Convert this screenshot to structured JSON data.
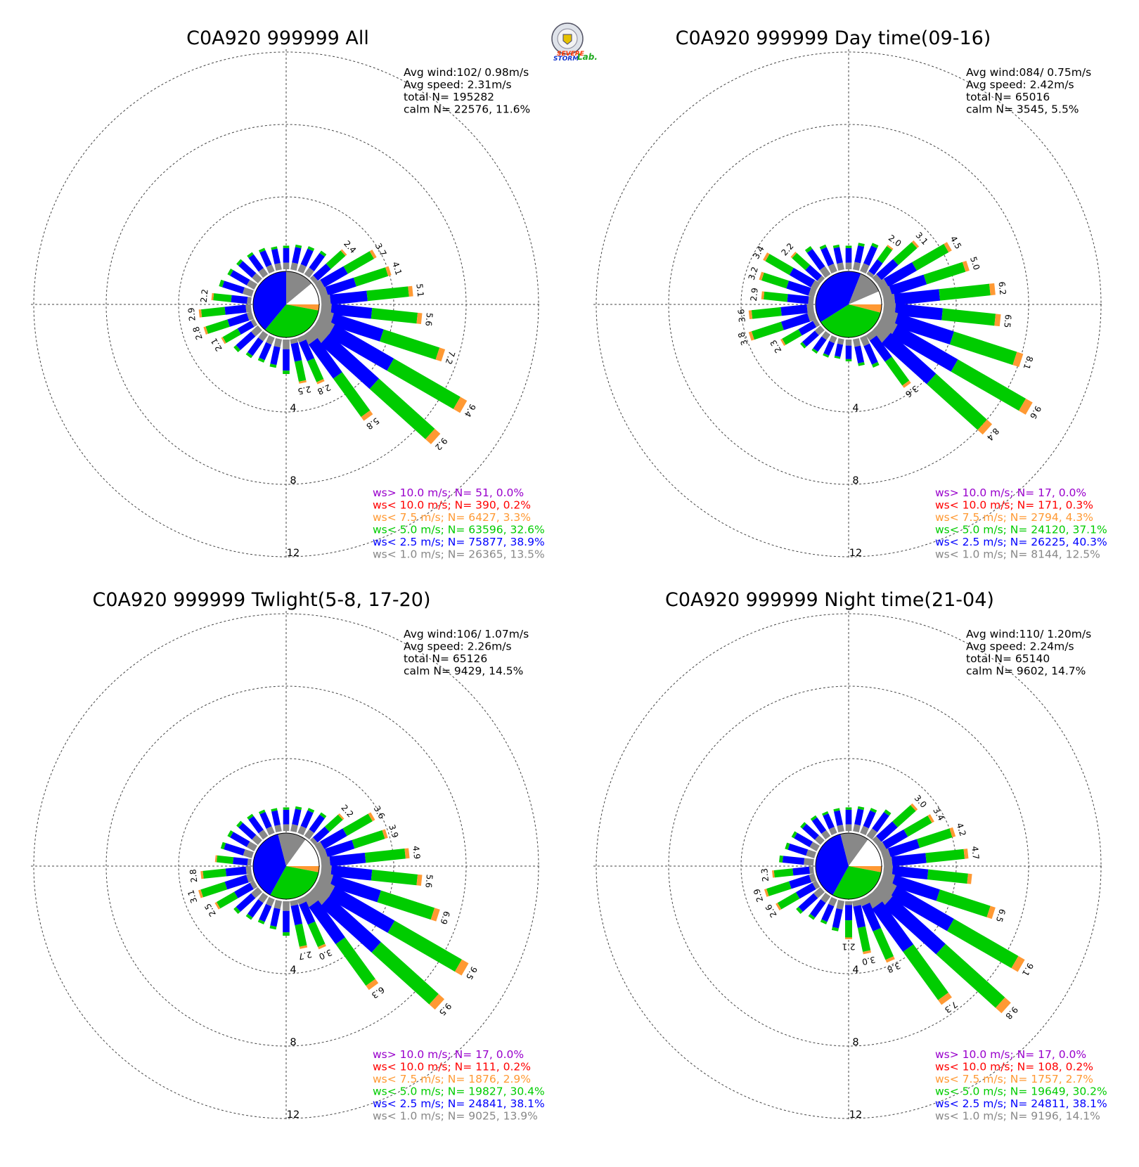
{
  "logo": {
    "text_severe": "SEVERE",
    "text_storm": "STORM",
    "text_lab": "Lab."
  },
  "chart_data": [
    {
      "type": "polar-bar",
      "title": "C0A920 999999 All",
      "radial_ticks": [
        "4",
        "8",
        "12"
      ],
      "stats": [
        "Avg wind:102/ 0.98m/s",
        "Avg speed: 2.31m/s",
        "total N=      195282",
        "calm N=  22576,  11.6%"
      ],
      "calm_pie": {
        "gray": 0.14,
        "blue": 0.39,
        "green": 0.33,
        "orange": 0.03
      },
      "sector_totals": [
        1.3,
        1.4,
        1.5,
        1.6,
        2.4,
        3.7,
        4.1,
        5.1,
        5.6,
        7.2,
        9.4,
        9.2,
        5.8,
        2.8,
        2.5,
        1.9,
        1.6,
        1.5,
        1.6,
        1.8,
        2.1,
        2.8,
        2.9,
        2.2,
        1.9,
        1.7,
        1.6,
        1.5,
        1.4,
        1.3
      ],
      "bar_labels": [
        null,
        null,
        null,
        null,
        "2.4",
        "3.7",
        "4.1",
        "5.1",
        "5.6",
        "7.2",
        "9.4",
        "9.2",
        "5.8",
        "2.8",
        "2.5",
        null,
        null,
        null,
        null,
        null,
        "2.1",
        "2.8",
        "2.9",
        "2.2",
        null,
        null,
        null,
        null,
        null,
        null
      ],
      "legend": [
        {
          "text": "ws> 10.0 m/s; N=    51,  0.0%",
          "color": "#9900cc"
        },
        {
          "text": "ws< 10.0 m/s; N=   390,  0.2%",
          "color": "#ff0000"
        },
        {
          "text": "ws<  7.5 m/s; N=  6427,  3.3%",
          "color": "#ff9933"
        },
        {
          "text": "ws<  5.0 m/s; N= 63596, 32.6%",
          "color": "#00cc00"
        },
        {
          "text": "ws<  2.5 m/s; N= 75877, 38.9%",
          "color": "#0000ff"
        },
        {
          "text": "ws<  1.0 m/s; N= 26365, 13.5%",
          "color": "#888888"
        }
      ]
    },
    {
      "type": "polar-bar",
      "title": "C0A920 999999 Day time(09-16)",
      "radial_ticks": [
        "4",
        "8",
        "12"
      ],
      "stats": [
        "Avg wind:084/ 0.75m/s",
        "Avg speed: 2.42m/s",
        "total N=       65016",
        "calm N=   3545,   5.5%"
      ],
      "calm_pie": {
        "gray": 0.125,
        "blue": 0.4,
        "green": 0.37,
        "orange": 0.04
      },
      "sector_totals": [
        1.3,
        1.5,
        1.7,
        2.0,
        3.1,
        4.5,
        5.0,
        6.2,
        6.5,
        8.1,
        9.6,
        8.4,
        3.6,
        1.8,
        1.5,
        1.2,
        1.1,
        1.2,
        1.3,
        1.5,
        2.3,
        3.8,
        3.6,
        2.9,
        3.2,
        3.4,
        2.2,
        1.9,
        1.6,
        1.4
      ],
      "bar_labels": [
        null,
        null,
        null,
        "2.0",
        "3.1",
        "4.5",
        "5.0",
        "6.2",
        "6.5",
        "8.1",
        "9.6",
        "8.4",
        "3.6",
        null,
        null,
        null,
        null,
        null,
        null,
        null,
        "2.3",
        "3.8",
        "3.6",
        "2.9",
        "3.2",
        "3.4",
        "2.2",
        null,
        null,
        null
      ],
      "legend": [
        {
          "text": "ws> 10.0 m/s; N=    17,  0.0%",
          "color": "#9900cc"
        },
        {
          "text": "ws< 10.0 m/s; N=   171,  0.3%",
          "color": "#ff0000"
        },
        {
          "text": "ws<  7.5 m/s; N=  2794,  4.3%",
          "color": "#ff9933"
        },
        {
          "text": "ws<  5.0 m/s; N= 24120, 37.1%",
          "color": "#00cc00"
        },
        {
          "text": "ws<  2.5 m/s; N= 26225, 40.3%",
          "color": "#0000ff"
        },
        {
          "text": "ws<  1.0 m/s; N=  8144, 12.5%",
          "color": "#888888"
        }
      ]
    },
    {
      "type": "polar-bar",
      "title": "C0A920 999999 Twlight(5-8, 17-20)",
      "radial_ticks": [
        "4",
        "8",
        "12"
      ],
      "stats": [
        "Avg wind:106/ 1.07m/s",
        "Avg speed: 2.26m/s",
        "total N=       65126",
        "calm N=   9429,  14.5%"
      ],
      "calm_pie": {
        "gray": 0.14,
        "blue": 0.38,
        "green": 0.3,
        "orange": 0.03
      },
      "sector_totals": [
        1.3,
        1.4,
        1.5,
        1.6,
        2.2,
        3.6,
        3.9,
        4.9,
        5.6,
        6.9,
        9.5,
        9.5,
        6.3,
        3.0,
        2.7,
        1.9,
        1.6,
        1.5,
        1.6,
        1.8,
        2.5,
        3.1,
        2.8,
        2.0,
        1.8,
        1.7,
        1.6,
        1.5,
        1.4,
        1.3
      ],
      "bar_labels": [
        null,
        null,
        null,
        null,
        "2.2",
        "3.6",
        "3.9",
        "4.9",
        "5.6",
        "6.9",
        "9.5",
        "9.5",
        "6.3",
        "3.0",
        "2.7",
        null,
        null,
        null,
        null,
        null,
        "2.5",
        "3.1",
        "2.8",
        null,
        null,
        null,
        null,
        null,
        null,
        null
      ],
      "legend": [
        {
          "text": "ws> 10.0 m/s; N=    17,  0.0%",
          "color": "#9900cc"
        },
        {
          "text": "ws< 10.0 m/s; N=   111,  0.2%",
          "color": "#ff0000"
        },
        {
          "text": "ws<  7.5 m/s; N=  1876,  2.9%",
          "color": "#ff9933"
        },
        {
          "text": "ws<  5.0 m/s; N= 19827, 30.4%",
          "color": "#00cc00"
        },
        {
          "text": "ws<  2.5 m/s; N= 24841, 38.1%",
          "color": "#0000ff"
        },
        {
          "text": "ws<  1.0 m/s; N=  9025, 13.9%",
          "color": "#888888"
        }
      ]
    },
    {
      "type": "polar-bar",
      "title": "C0A920 999999 Night time(21-04)",
      "radial_ticks": [
        "4",
        "8",
        "12"
      ],
      "stats": [
        "Avg wind:110/ 1.20m/s",
        "Avg speed: 2.24m/s",
        "total N=       65140",
        "calm N=   9602,  14.7%"
      ],
      "calm_pie": {
        "gray": 0.14,
        "blue": 0.38,
        "green": 0.3,
        "orange": 0.03
      },
      "sector_totals": [
        1.3,
        1.4,
        1.5,
        1.8,
        3.0,
        3.4,
        4.2,
        4.7,
        4.9,
        6.5,
        9.1,
        9.8,
        7.3,
        3.8,
        3.0,
        2.1,
        1.7,
        1.5,
        1.6,
        1.8,
        2.6,
        2.9,
        2.3,
        1.9,
        1.7,
        1.6,
        1.5,
        1.4,
        1.3,
        1.3
      ],
      "bar_labels": [
        null,
        null,
        null,
        null,
        "3.0",
        "3.4",
        "4.2",
        "4.7",
        null,
        "6.5",
        "9.1",
        "9.8",
        "7.3",
        "3.8",
        "3.0",
        "2.1",
        null,
        null,
        null,
        null,
        "2.6",
        "2.9",
        "2.3",
        null,
        null,
        null,
        null,
        null,
        null,
        null
      ],
      "legend": [
        {
          "text": "ws> 10.0 m/s; N=    17,  0.0%",
          "color": "#9900cc"
        },
        {
          "text": "ws< 10.0 m/s; N=   108,  0.2%",
          "color": "#ff0000"
        },
        {
          "text": "ws<  7.5 m/s; N=  1757,  2.7%",
          "color": "#ff9933"
        },
        {
          "text": "ws<  5.0 m/s; N= 19649, 30.2%",
          "color": "#00cc00"
        },
        {
          "text": "ws<  2.5 m/s; N= 24811, 38.1%",
          "color": "#0000ff"
        },
        {
          "text": "ws<  1.0 m/s; N=  9196, 14.1%",
          "color": "#888888"
        }
      ]
    }
  ]
}
